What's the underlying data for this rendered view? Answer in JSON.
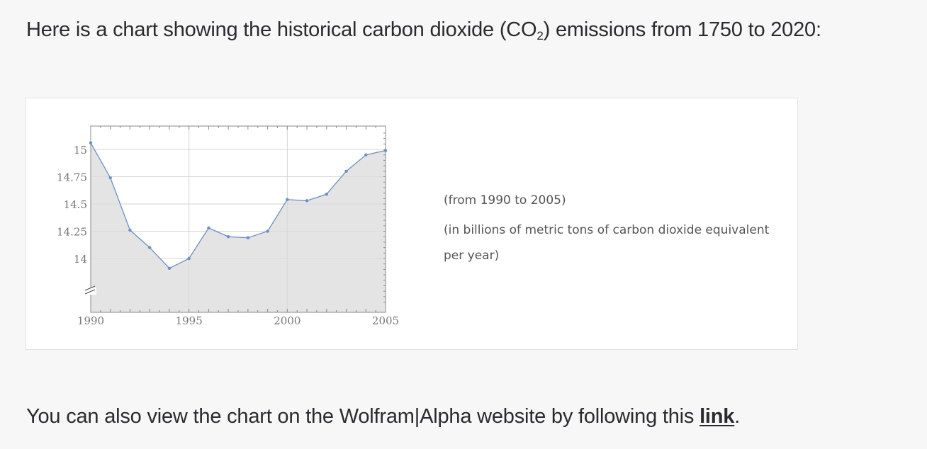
{
  "intro": {
    "text_before": "Here is a chart showing the historical carbon dioxide (CO",
    "subscript": "2",
    "text_after": ") emissions from 1750 to 2020:"
  },
  "notes": {
    "range": "(from 1990 to 2005)",
    "units": "(in billions of metric tons of carbon dioxide equivalent per year)"
  },
  "footer": {
    "text_before": "You can also view the chart on the Wolfram|Alpha website by following this ",
    "link_label": "link",
    "text_after": "."
  },
  "chart_data": {
    "type": "area",
    "title": "",
    "xlabel": "",
    "ylabel": "",
    "xlim": [
      1990,
      2005
    ],
    "ylim": [
      13.6,
      15.2
    ],
    "axis_break": "y",
    "grid": true,
    "x_ticks": [
      1990,
      1995,
      2000,
      2005
    ],
    "x_tick_labels": [
      "1990",
      "1995",
      "2000",
      "2005"
    ],
    "y_ticks": [
      14,
      14.25,
      14.5,
      14.75,
      15
    ],
    "y_tick_labels": [
      "14",
      "14.25",
      "14.5",
      "14.75",
      "15"
    ],
    "series": [
      {
        "x": [
          1990,
          1991,
          1992,
          1993,
          1994,
          1995,
          1996,
          1997,
          1998,
          1999,
          2000,
          2001,
          2002,
          2003,
          2004,
          2005
        ],
        "values": [
          15.06,
          14.74,
          14.26,
          14.1,
          13.91,
          14.0,
          14.28,
          14.2,
          14.19,
          14.25,
          14.54,
          14.53,
          14.59,
          14.8,
          14.95,
          14.99
        ]
      }
    ],
    "colors": {
      "line": "#6b8fc7",
      "fill": "#e4e4e4",
      "grid": "#dcdcdc",
      "frame": "#8a8a8a"
    }
  }
}
